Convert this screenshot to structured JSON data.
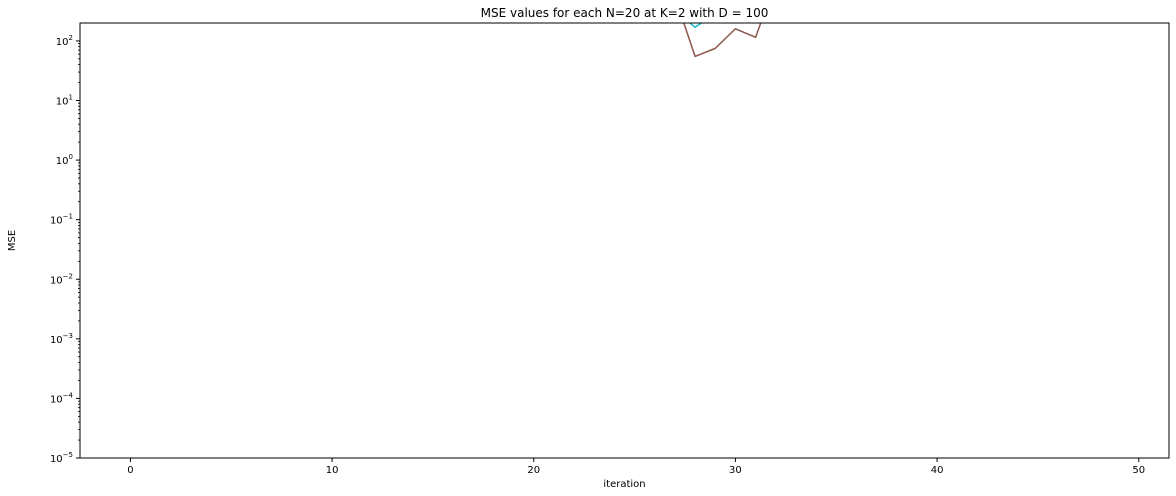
{
  "chart_data": {
    "type": "line",
    "title": "MSE values for each N=20 at K=2 with D = 100",
    "xlabel": "iteration",
    "ylabel": "MSE",
    "xlim": [
      -2.5,
      51.5
    ],
    "ylim": [
      1e-05,
      200
    ],
    "yscale": "log",
    "x_ticks": [
      0,
      10,
      20,
      30,
      40,
      50
    ],
    "x_tick_labels": [
      "0",
      "10",
      "20",
      "30",
      "40",
      "50"
    ],
    "y_ticks": [
      1e-05,
      0.0001,
      0.001,
      0.01,
      0.1,
      1,
      10,
      100
    ],
    "y_tick_labels": [
      {
        "base": "10",
        "exp": "−5"
      },
      {
        "base": "10",
        "exp": "−4"
      },
      {
        "base": "10",
        "exp": "−3"
      },
      {
        "base": "10",
        "exp": "−2"
      },
      {
        "base": "10",
        "exp": "−1"
      },
      {
        "base": "10",
        "exp": "0"
      },
      {
        "base": "10",
        "exp": "1"
      },
      {
        "base": "10",
        "exp": "2"
      }
    ],
    "grid": false,
    "legend": "none",
    "series": [
      {
        "color": "#8c564b",
        "x": [
          27.4,
          28,
          29,
          30,
          31,
          31.3
        ],
        "y": [
          220,
          55,
          75,
          160,
          115,
          220
        ]
      },
      {
        "color": "#17becf",
        "x": [
          27.6,
          28,
          28.5
        ],
        "y": [
          220,
          170,
          220
        ]
      }
    ]
  }
}
